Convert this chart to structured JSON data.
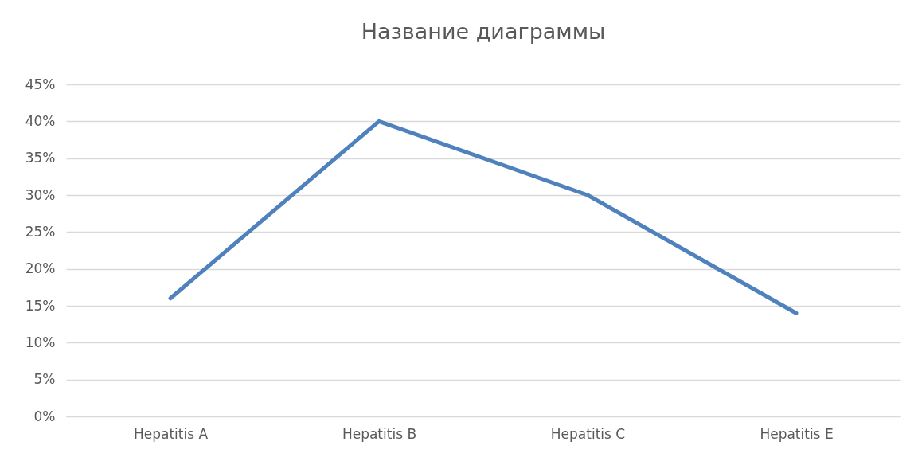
{
  "chart_data": {
    "type": "line",
    "title": "Название диаграммы",
    "categories": [
      "Hepatitis A",
      "Hepatitis B",
      "Hepatitis C",
      "Hepatitis E"
    ],
    "series": [
      {
        "color": "#4f81bd",
        "values": [
          16,
          40,
          30,
          14
        ]
      }
    ],
    "ylim": [
      0,
      45
    ],
    "yticks": [
      {
        "value": 0,
        "label": "0%"
      },
      {
        "value": 5,
        "label": "5%"
      },
      {
        "value": 10,
        "label": "10%"
      },
      {
        "value": 15,
        "label": "15%"
      },
      {
        "value": 20,
        "label": "20%"
      },
      {
        "value": 25,
        "label": "25%"
      },
      {
        "value": 30,
        "label": "30%"
      },
      {
        "value": 35,
        "label": "35%"
      },
      {
        "value": 40,
        "label": "40%"
      },
      {
        "value": 45,
        "label": "45%"
      }
    ],
    "grid": "y"
  }
}
